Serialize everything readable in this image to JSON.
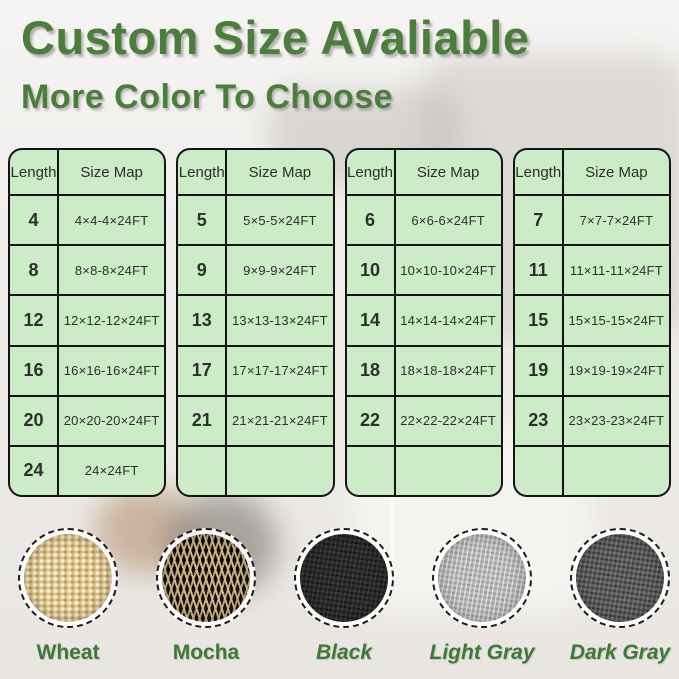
{
  "title": "Custom Size Avaliable",
  "subtitle": "More Color To Choose",
  "colors": {
    "heading_green": "#4b7e3c",
    "label_green": "#3d7a36",
    "table_fill": "#cbecc6",
    "table_border": "#141414",
    "wheat": "#dcc38c",
    "mocha_tan": "#d8be89",
    "mocha_black": "#17130e",
    "black": "#2d2c2b",
    "light_gray": "#bab9b7",
    "dark_gray": "#5e5d5c"
  },
  "tables": [
    {
      "headers": {
        "length": "Length",
        "size_map": "Size Map"
      },
      "rows": [
        {
          "len": "4",
          "map": "4×4-4×24FT"
        },
        {
          "len": "8",
          "map": "8×8-8×24FT"
        },
        {
          "len": "12",
          "map": "12×12-12×24FT"
        },
        {
          "len": "16",
          "map": "16×16-16×24FT"
        },
        {
          "len": "20",
          "map": "20×20-20×24FT"
        },
        {
          "len": "24",
          "map": "24×24FT"
        }
      ]
    },
    {
      "headers": {
        "length": "Length",
        "size_map": "Size Map"
      },
      "rows": [
        {
          "len": "5",
          "map": "5×5-5×24FT"
        },
        {
          "len": "9",
          "map": "9×9-9×24FT"
        },
        {
          "len": "13",
          "map": "13×13-13×24FT"
        },
        {
          "len": "17",
          "map": "17×17-17×24FT"
        },
        {
          "len": "21",
          "map": "21×21-21×24FT"
        },
        {
          "len": "",
          "map": ""
        }
      ]
    },
    {
      "headers": {
        "length": "Length",
        "size_map": "Size Map"
      },
      "rows": [
        {
          "len": "6",
          "map": "6×6-6×24FT"
        },
        {
          "len": "10",
          "map": "10×10-10×24FT"
        },
        {
          "len": "14",
          "map": "14×14-14×24FT"
        },
        {
          "len": "18",
          "map": "18×18-18×24FT"
        },
        {
          "len": "22",
          "map": "22×22-22×24FT"
        },
        {
          "len": "",
          "map": ""
        }
      ]
    },
    {
      "headers": {
        "length": "Length",
        "size_map": "Size Map"
      },
      "rows": [
        {
          "len": "7",
          "map": "7×7-7×24FT"
        },
        {
          "len": "11",
          "map": "11×11-11×24FT"
        },
        {
          "len": "15",
          "map": "15×15-15×24FT"
        },
        {
          "len": "19",
          "map": "19×19-19×24FT"
        },
        {
          "len": "23",
          "map": "23×23-23×24FT"
        },
        {
          "len": "",
          "map": ""
        }
      ]
    }
  ],
  "swatches": [
    {
      "name": "Wheat",
      "italic": false
    },
    {
      "name": "Mocha",
      "italic": false
    },
    {
      "name": "Black",
      "italic": true
    },
    {
      "name": "Light Gray",
      "italic": true
    },
    {
      "name": "Dark Gray",
      "italic": true
    }
  ]
}
